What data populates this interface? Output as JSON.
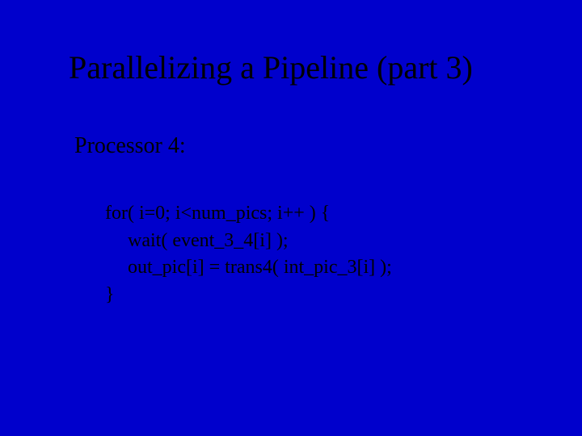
{
  "slide": {
    "background_color": "#0000cc",
    "title_color": "#000000",
    "text_color": "#000000",
    "title_fontsize": 40,
    "subtitle_fontsize": 28,
    "code_fontsize": 24,
    "font_family": "Times New Roman",
    "title": "Parallelizing a Pipeline (part 3)",
    "subtitle": "Processor 4:",
    "code": {
      "line1": "for( i=0; i<num_pics; i++ ) {",
      "line2": "wait( event_3_4[i] );",
      "line3": "out_pic[i] = trans4( int_pic_3[i] );",
      "line4": "}"
    }
  }
}
